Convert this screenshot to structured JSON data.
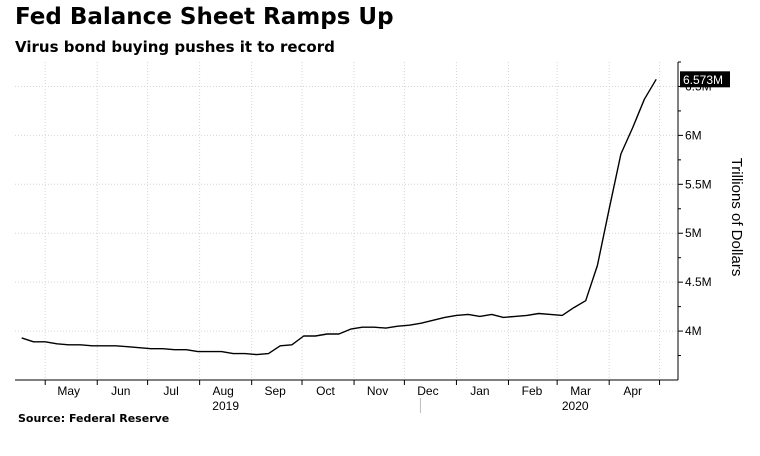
{
  "title": "Fed Balance Sheet Ramps Up",
  "subtitle": "Virus bond buying pushes it to record",
  "source": "Source: Federal Reserve",
  "colors": {
    "line": "#000000",
    "grid": "#d6d6d6",
    "label_bg": "#000000",
    "label_text": "#ffffff"
  },
  "chart_data": {
    "type": "line",
    "ylabel": "Trillions of Dollars",
    "ylim": [
      3.5,
      6.75
    ],
    "y_ticks": [
      {
        "value": 4.0,
        "label": "4M"
      },
      {
        "value": 4.5,
        "label": "4.5M"
      },
      {
        "value": 5.0,
        "label": "5M"
      },
      {
        "value": 5.5,
        "label": "5.5M"
      },
      {
        "value": 6.0,
        "label": "6M"
      },
      {
        "value": 6.5,
        "label": "6.5M"
      }
    ],
    "x_month_labels": [
      "May",
      "Jun",
      "Jul",
      "Aug",
      "Sep",
      "Oct",
      "Nov",
      "Dec",
      "Jan",
      "Feb",
      "Mar",
      "Apr"
    ],
    "x_year_labels": [
      "2019",
      "2020"
    ],
    "last_value_label": "6.573M",
    "grid": true,
    "series": [
      {
        "values": [
          [
            "2019-04-17",
            3.93
          ],
          [
            "2019-04-24",
            3.89
          ],
          [
            "2019-05-01",
            3.89
          ],
          [
            "2019-05-08",
            3.87
          ],
          [
            "2019-05-15",
            3.86
          ],
          [
            "2019-05-22",
            3.86
          ],
          [
            "2019-05-29",
            3.85
          ],
          [
            "2019-06-05",
            3.85
          ],
          [
            "2019-06-12",
            3.85
          ],
          [
            "2019-06-19",
            3.84
          ],
          [
            "2019-06-26",
            3.83
          ],
          [
            "2019-07-03",
            3.82
          ],
          [
            "2019-07-10",
            3.82
          ],
          [
            "2019-07-17",
            3.81
          ],
          [
            "2019-07-24",
            3.81
          ],
          [
            "2019-07-31",
            3.79
          ],
          [
            "2019-08-07",
            3.79
          ],
          [
            "2019-08-14",
            3.79
          ],
          [
            "2019-08-21",
            3.77
          ],
          [
            "2019-08-28",
            3.77
          ],
          [
            "2019-09-04",
            3.76
          ],
          [
            "2019-09-11",
            3.77
          ],
          [
            "2019-09-18",
            3.85
          ],
          [
            "2019-09-25",
            3.86
          ],
          [
            "2019-10-02",
            3.95
          ],
          [
            "2019-10-09",
            3.95
          ],
          [
            "2019-10-16",
            3.97
          ],
          [
            "2019-10-23",
            3.97
          ],
          [
            "2019-10-30",
            4.02
          ],
          [
            "2019-11-06",
            4.04
          ],
          [
            "2019-11-13",
            4.04
          ],
          [
            "2019-11-20",
            4.03
          ],
          [
            "2019-11-27",
            4.05
          ],
          [
            "2019-12-04",
            4.06
          ],
          [
            "2019-12-11",
            4.08
          ],
          [
            "2019-12-18",
            4.11
          ],
          [
            "2019-12-25",
            4.14
          ],
          [
            "2020-01-01",
            4.16
          ],
          [
            "2020-01-08",
            4.17
          ],
          [
            "2020-01-15",
            4.15
          ],
          [
            "2020-01-22",
            4.17
          ],
          [
            "2020-01-29",
            4.14
          ],
          [
            "2020-02-05",
            4.15
          ],
          [
            "2020-02-12",
            4.16
          ],
          [
            "2020-02-19",
            4.18
          ],
          [
            "2020-02-26",
            4.17
          ],
          [
            "2020-03-04",
            4.16
          ],
          [
            "2020-03-11",
            4.24
          ],
          [
            "2020-03-18",
            4.31
          ],
          [
            "2020-03-25",
            4.67
          ],
          [
            "2020-04-01",
            5.25
          ],
          [
            "2020-04-08",
            5.81
          ],
          [
            "2020-04-15",
            6.08
          ],
          [
            "2020-04-22",
            6.37
          ],
          [
            "2020-04-29",
            6.573
          ]
        ]
      }
    ]
  }
}
